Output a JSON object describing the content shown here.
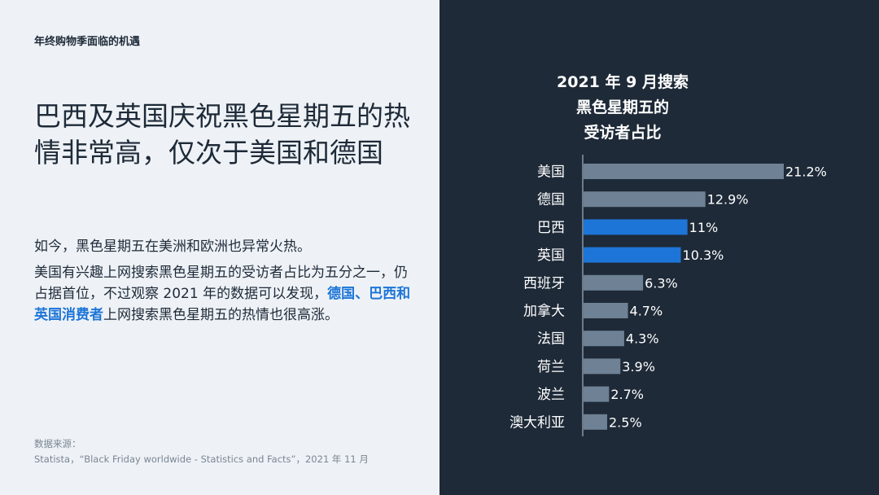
{
  "header": {
    "eyebrow": "年终购物季面临的机遇"
  },
  "headline": "巴西及英国庆祝黑色星期五的热情非常高，仅次于美国和德国",
  "body": {
    "p1": "如今，黑色星期五在美洲和欧洲也异常火热。",
    "p2_before": "美国有兴趣上网搜索黑色星期五的受访者占比为五分之一，仍占据首位，不过观察 2021 年的数据可以发现，",
    "p2_highlight": "德国、巴西和英国消费者",
    "p2_after": "上网搜索黑色星期五的热情也很高涨。"
  },
  "source": {
    "label": "数据来源：",
    "text": "Statista，“Black Friday worldwide - Statistics and Facts”，2021 年 11 月"
  },
  "colors": {
    "left_bg": "#eef2f6",
    "right_bg": "#1e2a38",
    "accent": "#1d75d8",
    "bar_default": "#6f8194",
    "text_dark": "#1e2a38"
  },
  "chart_data": {
    "type": "bar",
    "orientation": "horizontal",
    "title_lines": [
      "2021 年 9 月搜索",
      "黑色星期五的",
      "受访者占比"
    ],
    "categories": [
      "美国",
      "德国",
      "巴西",
      "英国",
      "西班牙",
      "加拿大",
      "法国",
      "荷兰",
      "波兰",
      "澳大利亚"
    ],
    "values": [
      21.2,
      12.9,
      11,
      10.3,
      6.3,
      4.7,
      4.3,
      3.9,
      2.7,
      2.5
    ],
    "value_labels": [
      "21.2%",
      "12.9%",
      "11%",
      "10.3%",
      "6.3%",
      "4.7%",
      "4.3%",
      "3.9%",
      "2.7%",
      "2.5%"
    ],
    "highlighted": [
      "巴西",
      "英国"
    ],
    "xlim": [
      0,
      21.2
    ],
    "grid": false,
    "legend": "none"
  }
}
